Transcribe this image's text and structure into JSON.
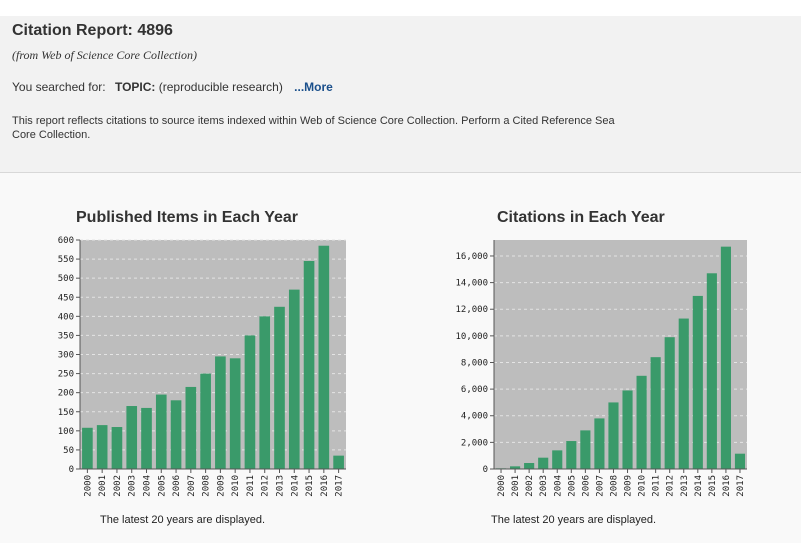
{
  "header": {
    "title": "Citation Report: 4896",
    "subtitle": "(from Web of Science Core Collection)",
    "search_prefix": "You searched for:",
    "search_label": "TOPIC:",
    "search_query": "(reproducible research)",
    "more_link": "...More",
    "description_line1": "This report reflects citations to source items indexed within Web of Science Core Collection. Perform a Cited Reference Sea",
    "description_line2": "Core Collection."
  },
  "colors": {
    "bar": "#3a9a6a",
    "plot_bg": "#bdbdbd",
    "link": "#1a4f8b"
  },
  "chart_data": [
    {
      "type": "bar",
      "title": "Published Items in Each Year",
      "categories": [
        "2000",
        "2001",
        "2002",
        "2003",
        "2004",
        "2005",
        "2006",
        "2007",
        "2008",
        "2009",
        "2010",
        "2011",
        "2012",
        "2013",
        "2014",
        "2015",
        "2016",
        "2017"
      ],
      "values": [
        108,
        115,
        110,
        165,
        160,
        195,
        180,
        215,
        250,
        295,
        290,
        350,
        400,
        425,
        470,
        545,
        585,
        35
      ],
      "ylim": [
        0,
        600
      ],
      "yticks": [
        0,
        50,
        100,
        150,
        200,
        250,
        300,
        350,
        400,
        450,
        500,
        550,
        600
      ],
      "ytick_labels": [
        "0",
        "50",
        "100",
        "150",
        "200",
        "250",
        "300",
        "350",
        "400",
        "450",
        "500",
        "550",
        "600"
      ],
      "footer": "The latest 20 years are displayed."
    },
    {
      "type": "bar",
      "title": "Citations in Each Year",
      "categories": [
        "2000",
        "2001",
        "2002",
        "2003",
        "2004",
        "2005",
        "2006",
        "2007",
        "2008",
        "2009",
        "2010",
        "2011",
        "2012",
        "2013",
        "2014",
        "2015",
        "2016",
        "2017"
      ],
      "values": [
        50,
        200,
        450,
        850,
        1400,
        2100,
        2900,
        3800,
        5000,
        5900,
        7000,
        8400,
        9900,
        11300,
        13000,
        14700,
        16700,
        1150
      ],
      "ylim": [
        0,
        17200
      ],
      "yticks": [
        0,
        2000,
        4000,
        6000,
        8000,
        10000,
        12000,
        14000,
        16000
      ],
      "ytick_labels": [
        "0",
        "2,000",
        "4,000",
        "6,000",
        "8,000",
        "10,000",
        "12,000",
        "14,000",
        "16,000"
      ],
      "footer": "The latest 20 years are displayed."
    }
  ]
}
